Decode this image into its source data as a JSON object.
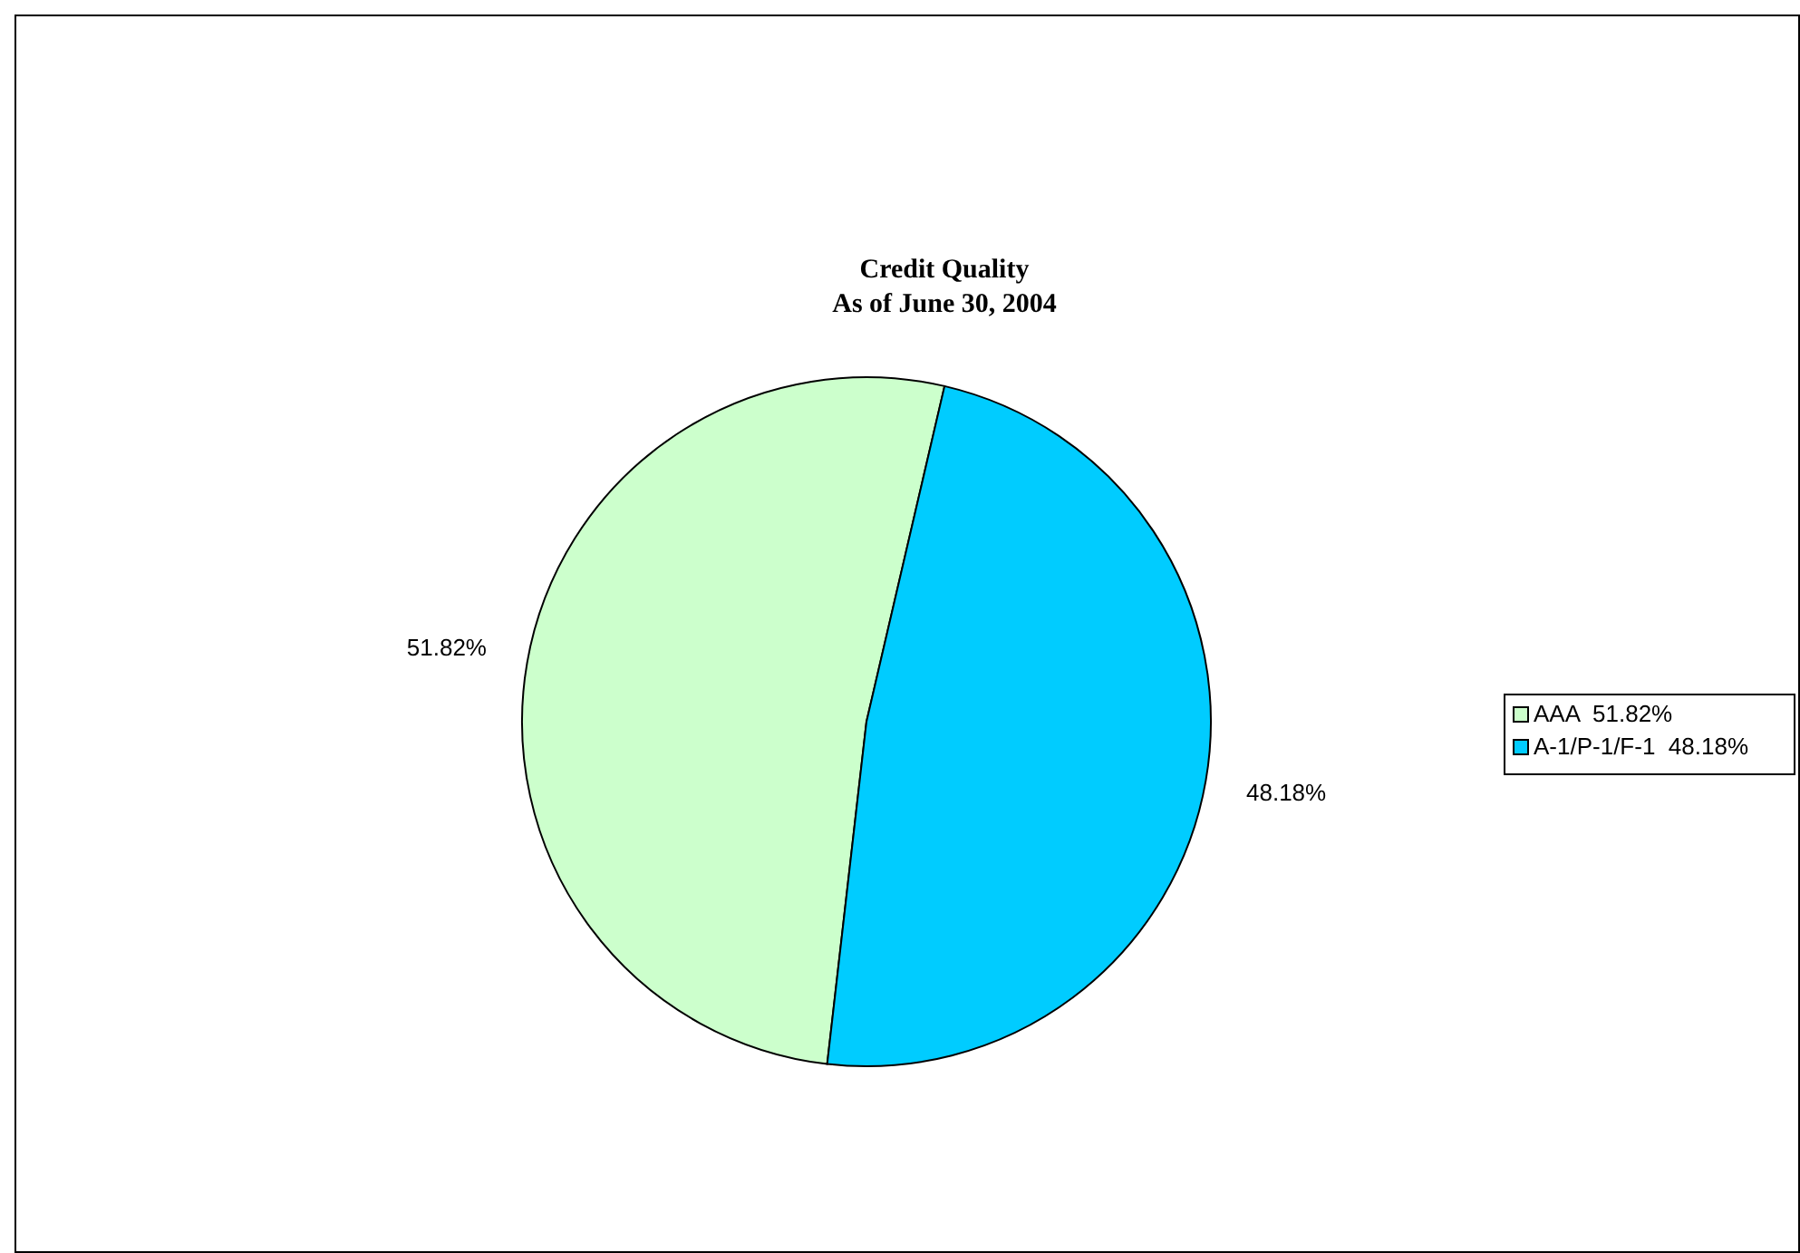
{
  "chart_data": {
    "type": "pie",
    "title": "Credit Quality",
    "subtitle": "As of June 30, 2004",
    "categories": [
      "AAA",
      "A-1/P-1/F-1"
    ],
    "values": [
      51.82,
      48.18
    ],
    "colors": [
      "#ccffcc",
      "#00ccff"
    ],
    "value_labels": [
      "51.82%",
      "48.18%"
    ],
    "legend": "right"
  }
}
